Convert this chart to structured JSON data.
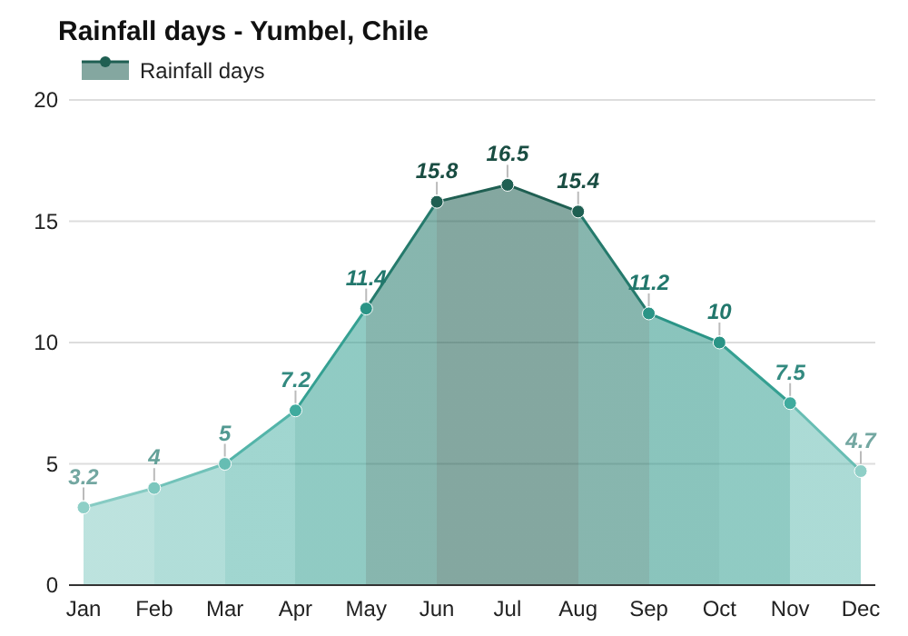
{
  "chart_data": {
    "type": "area",
    "title": "Rainfall days - Yumbel, Chile",
    "categories": [
      "Jan",
      "Feb",
      "Mar",
      "Apr",
      "May",
      "Jun",
      "Jul",
      "Aug",
      "Sep",
      "Oct",
      "Nov",
      "Dec"
    ],
    "series": [
      {
        "name": "Rainfall days",
        "color": "#1f5f52",
        "values": [
          3.2,
          4,
          5,
          7.2,
          11.4,
          15.8,
          16.5,
          15.4,
          11.2,
          10,
          7.5,
          4.7
        ],
        "colors": [
          "#8fcfc7",
          "#7cc7be",
          "#66bdb3",
          "#3fab9e",
          "#2a9486",
          "#1f5f52",
          "#1f5f52",
          "#1f5f52",
          "#2a9486",
          "#2a9486",
          "#3fab9e",
          "#8fcfc7"
        ]
      }
    ],
    "ylim": [
      0,
      20
    ],
    "yticks": [
      0,
      5,
      10,
      15,
      20
    ],
    "grid": "y",
    "legend": "top left",
    "marker": "circle",
    "data_labels": true
  }
}
